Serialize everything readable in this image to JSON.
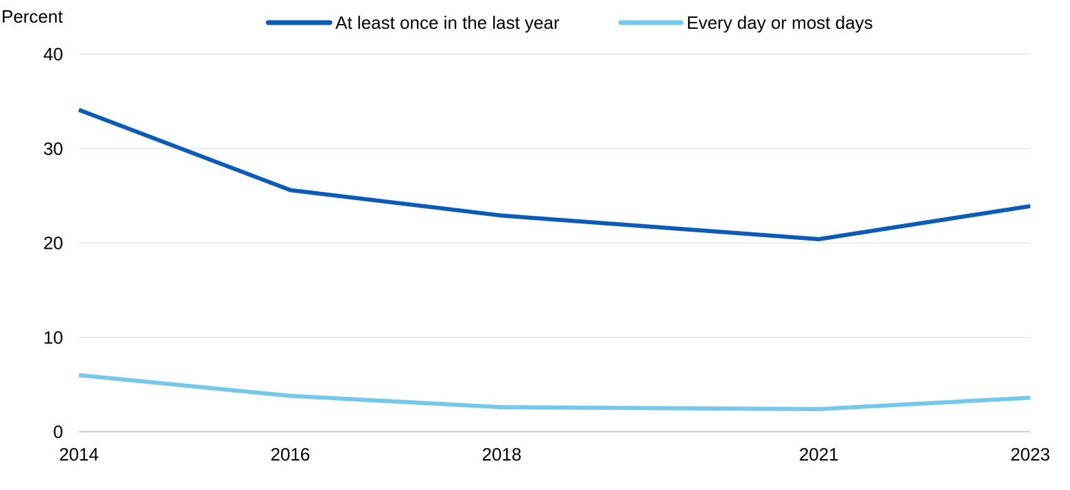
{
  "chart_data": {
    "type": "line",
    "title": "",
    "xlabel": "",
    "ylabel": "Percent",
    "x": [
      "2014",
      "2016",
      "2018",
      "2021",
      "2023"
    ],
    "x_numeric": [
      2014,
      2016,
      2018,
      2021,
      2023
    ],
    "xlim": [
      2014,
      2023
    ],
    "ylim": [
      0,
      40
    ],
    "y_ticks": [
      0,
      10,
      20,
      30,
      40
    ],
    "grid": "horizontal",
    "legend_position": "top",
    "series": [
      {
        "name": "At least once in the last year",
        "color": "#0A5CB8",
        "values": [
          34.1,
          25.6,
          22.9,
          20.4,
          23.9
        ]
      },
      {
        "name": "Every day or most days",
        "color": "#74C8EC",
        "values": [
          6.0,
          3.8,
          2.6,
          2.4,
          3.6
        ]
      }
    ]
  }
}
